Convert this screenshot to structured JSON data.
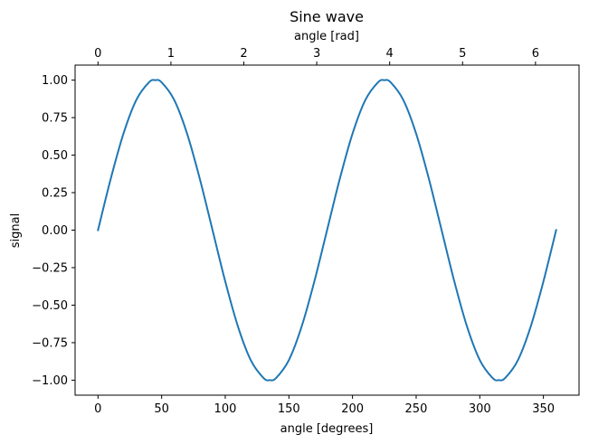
{
  "chart_data": {
    "type": "line",
    "title": "Sine wave",
    "xlabel": "angle [degrees]",
    "ylabel": "signal",
    "secondary_xlabel": "angle [rad]",
    "xlim": [
      -18,
      378
    ],
    "ylim": [
      -1.1,
      1.1
    ],
    "x_ticks": [
      0,
      50,
      100,
      150,
      200,
      250,
      300,
      350
    ],
    "x_tick_labels": [
      "0",
      "50",
      "100",
      "150",
      "200",
      "250",
      "300",
      "350"
    ],
    "secondary_x_ticks": [
      0,
      1,
      2,
      3,
      4,
      5,
      6
    ],
    "secondary_x_tick_labels": [
      "0",
      "1",
      "2",
      "3",
      "4",
      "5",
      "6"
    ],
    "y_ticks": [
      -1.0,
      -0.75,
      -0.5,
      -0.25,
      0.0,
      0.25,
      0.5,
      0.75,
      1.0
    ],
    "y_tick_labels": [
      "−1.00",
      "−0.75",
      "−0.50",
      "−0.25",
      "0.00",
      "0.25",
      "0.50",
      "0.75",
      "1.00"
    ],
    "grid": false,
    "series": [
      {
        "color": "#1f77b4",
        "x": [
          0,
          10,
          20,
          30,
          40,
          45,
          50,
          60,
          70,
          80,
          90,
          100,
          110,
          120,
          130,
          135,
          140,
          150,
          160,
          170,
          180,
          190,
          200,
          210,
          220,
          225,
          230,
          240,
          250,
          260,
          270,
          280,
          290,
          300,
          310,
          315,
          320,
          330,
          340,
          350,
          360
        ],
        "y": [
          0.0,
          0.342,
          0.643,
          0.866,
          0.985,
          1.0,
          0.985,
          0.866,
          0.643,
          0.342,
          0.0,
          -0.342,
          -0.643,
          -0.866,
          -0.985,
          -1.0,
          -0.985,
          -0.866,
          -0.643,
          -0.342,
          0.0,
          0.342,
          0.643,
          0.866,
          0.985,
          1.0,
          0.985,
          0.866,
          0.643,
          0.342,
          0.0,
          -0.342,
          -0.643,
          -0.866,
          -0.985,
          -1.0,
          -0.985,
          -0.866,
          -0.643,
          -0.342,
          0.0
        ]
      }
    ]
  }
}
